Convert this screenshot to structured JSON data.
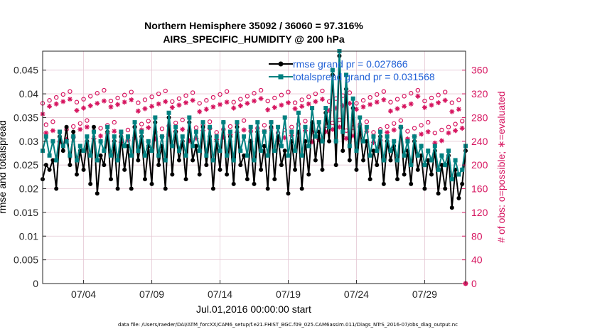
{
  "chart_data": {
    "type": "line",
    "title_line1": "Northern Hemisphere 35092 / 36060 = 97.316%",
    "title_line2": "AIRS_SPECIFIC_HUMIDITY @ 200 hPa",
    "xlabel": "Jul.01,2016 00:00:00 start",
    "ylabel_left": "rmse and totalspread",
    "ylabel_right": "# of obs: o=possible; ∗=evaluated",
    "footnote": "data file: /Users/raeder/DAI/ATM_forcXX/CAM6_setup/f.e21.FHIST_BGC.f09_025.CAM6assim.011/Diags_NTrS_2016-07/obs_diag_output.nc",
    "xlim": [
      1.0,
      32.0
    ],
    "ylim_left": [
      0,
      0.049
    ],
    "ylim_right": [
      0,
      392
    ],
    "x_ticks": [
      {
        "x": 4,
        "label": "07/04"
      },
      {
        "x": 9,
        "label": "07/09"
      },
      {
        "x": 14,
        "label": "07/14"
      },
      {
        "x": 19,
        "label": "07/19"
      },
      {
        "x": 24,
        "label": "07/24"
      },
      {
        "x": 29,
        "label": "07/29"
      }
    ],
    "y_ticks_left": [
      "0",
      "0.005",
      "0.01",
      "0.015",
      "0.02",
      "0.025",
      "0.03",
      "0.035",
      "0.04",
      "0.045"
    ],
    "y_tick_values_left": [
      0,
      0.005,
      0.01,
      0.015,
      0.02,
      0.025,
      0.03,
      0.035,
      0.04,
      0.045
    ],
    "y_ticks_right": [
      "0",
      "40",
      "80",
      "120",
      "160",
      "200",
      "240",
      "280",
      "320",
      "360"
    ],
    "y_tick_values_right": [
      0,
      40,
      80,
      120,
      160,
      200,
      240,
      280,
      320,
      360
    ],
    "series": [
      {
        "name": "rmse",
        "legend": "rmse grand pr = 0.027866",
        "color": "#000000",
        "axis": "left",
        "values": []
      },
      {
        "name": "totalspread",
        "legend": "totalspread grand pr = 0.031568",
        "color": "#008080",
        "axis": "left",
        "values": []
      },
      {
        "name": "possible",
        "color": "#d6145f",
        "axis": "right",
        "marker": "o",
        "values": []
      },
      {
        "name": "evaluated",
        "color": "#d6145f",
        "axis": "right",
        "marker": "*",
        "values": []
      }
    ],
    "x_start": 1.0,
    "x_step": 0.25,
    "grid": true,
    "legend_position": "top-right"
  }
}
